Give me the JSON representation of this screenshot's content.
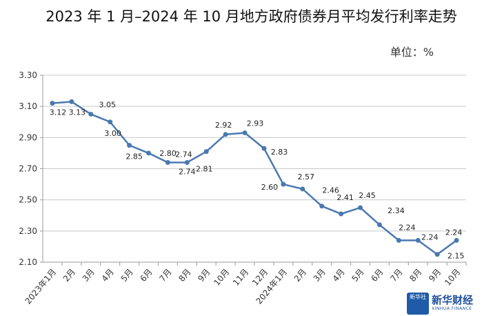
{
  "chart_data": {
    "type": "line",
    "title": "2023 年 1 月–2024 年 10 月地方政府债券月平均发行利率走势",
    "unit_label": "单位：%",
    "categories": [
      "2023年1月",
      "2月",
      "3月",
      "4月",
      "5月",
      "6月",
      "7月",
      "8月",
      "9月",
      "10月",
      "11月",
      "12月",
      "2024年1月",
      "2月",
      "3月",
      "4月",
      "5月",
      "6月",
      "7月",
      "8月",
      "9月",
      "10月"
    ],
    "values": [
      3.12,
      3.13,
      3.05,
      3.0,
      2.85,
      2.8,
      2.74,
      2.74,
      2.81,
      2.92,
      2.93,
      2.83,
      2.6,
      2.57,
      2.46,
      2.41,
      2.45,
      2.34,
      2.24,
      2.24,
      2.15,
      2.24
    ],
    "data_labels": [
      "3.12",
      "3.13",
      "3.05",
      "3.00",
      "2.85",
      "2.80",
      "2.74",
      "2.74",
      "2.81",
      "2.92",
      "2.93",
      "2.83",
      "2.60",
      "2.57",
      "2.46",
      "2.41",
      "2.45",
      "2.34",
      "2.24",
      "2.24",
      "2.15",
      "2.24"
    ],
    "yticks": [
      "3.30",
      "3.10",
      "2.90",
      "2.70",
      "2.50",
      "2.30",
      "2.10"
    ],
    "ylim": [
      2.1,
      3.3
    ],
    "grid": true,
    "legend": "none",
    "series_color": "#4a78b0"
  },
  "logo": {
    "box_text": "新华社",
    "brand": "新华财经",
    "sub": "XINHUA FINANCE"
  }
}
